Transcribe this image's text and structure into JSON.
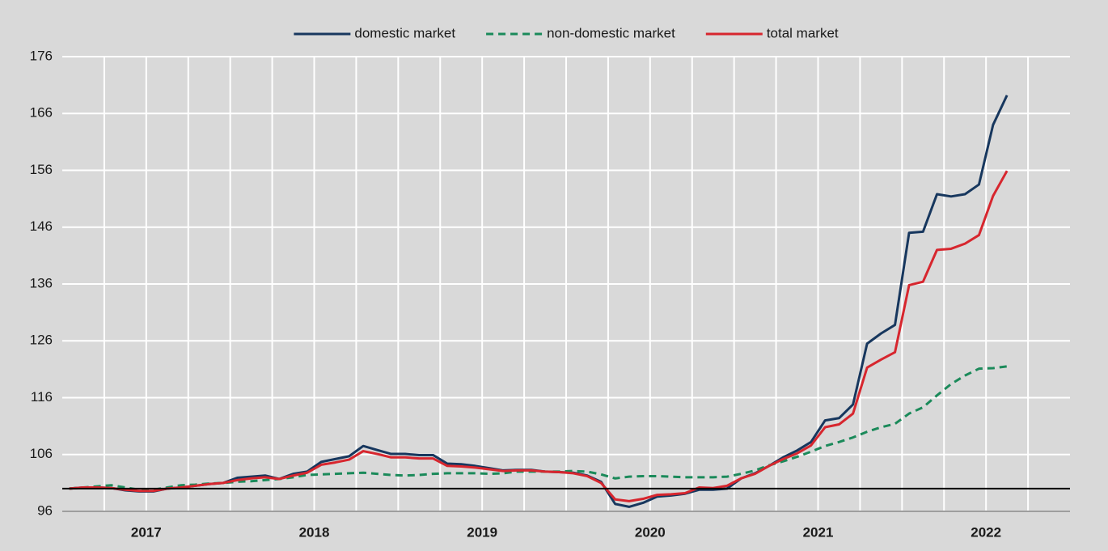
{
  "chart_data": {
    "type": "line",
    "x": [
      2017.042,
      2017.125,
      2017.208,
      2017.292,
      2017.375,
      2017.458,
      2017.542,
      2017.625,
      2017.708,
      2017.792,
      2017.875,
      2017.958,
      2018.042,
      2018.125,
      2018.208,
      2018.292,
      2018.375,
      2018.458,
      2018.542,
      2018.625,
      2018.708,
      2018.792,
      2018.875,
      2018.958,
      2019.042,
      2019.125,
      2019.208,
      2019.292,
      2019.375,
      2019.458,
      2019.542,
      2019.625,
      2019.708,
      2019.792,
      2019.875,
      2019.958,
      2020.042,
      2020.125,
      2020.208,
      2020.292,
      2020.375,
      2020.458,
      2020.542,
      2020.625,
      2020.708,
      2020.792,
      2020.875,
      2020.958,
      2021.042,
      2021.125,
      2021.208,
      2021.292,
      2021.375,
      2021.458,
      2021.542,
      2021.625,
      2021.708,
      2021.792,
      2021.875,
      2021.958,
      2022.042,
      2022.125,
      2022.208,
      2022.292,
      2022.375,
      2022.458,
      2022.542,
      2022.625
    ],
    "series": [
      {
        "name": "domestic market",
        "color": "#17375e",
        "dash": "solid",
        "values": [
          100.0,
          100.2,
          100.2,
          100.1,
          99.7,
          99.5,
          99.5,
          100.0,
          100.2,
          100.5,
          100.8,
          101.0,
          101.9,
          102.1,
          102.3,
          101.7,
          102.6,
          103.0,
          104.7,
          105.2,
          105.7,
          107.5,
          106.8,
          106.1,
          106.1,
          105.9,
          105.9,
          104.4,
          104.3,
          104.0,
          103.6,
          103.2,
          103.3,
          103.3,
          103.0,
          102.9,
          102.8,
          102.3,
          101.2,
          97.3,
          96.8,
          97.5,
          98.6,
          98.8,
          99.1,
          99.8,
          99.8,
          100.0,
          101.8,
          102.7,
          104.0,
          105.5,
          106.7,
          108.2,
          112.0,
          112.4,
          114.8,
          125.5,
          127.3,
          128.8,
          145.0,
          145.2,
          151.8,
          151.4,
          151.8,
          153.5,
          164.0,
          169.2
        ]
      },
      {
        "name": "non-domestic market",
        "color": "#1b8a5a",
        "dash": "dashed",
        "values": [
          100.0,
          100.2,
          100.4,
          100.6,
          100.2,
          99.8,
          99.8,
          100.2,
          100.6,
          100.7,
          100.9,
          101.0,
          101.2,
          101.3,
          101.5,
          101.7,
          102.0,
          102.4,
          102.5,
          102.6,
          102.7,
          102.8,
          102.6,
          102.4,
          102.3,
          102.4,
          102.6,
          102.7,
          102.7,
          102.7,
          102.6,
          102.7,
          103.0,
          103.0,
          103.0,
          103.0,
          103.1,
          103.0,
          102.5,
          101.8,
          102.1,
          102.2,
          102.2,
          102.1,
          102.0,
          102.0,
          102.0,
          102.1,
          102.6,
          103.2,
          104.1,
          104.8,
          105.6,
          106.5,
          107.5,
          108.2,
          109.0,
          110.0,
          110.8,
          111.4,
          113.2,
          114.3,
          116.4,
          118.4,
          119.9,
          121.1,
          121.2,
          121.5
        ]
      },
      {
        "name": "total market",
        "color": "#d7262e",
        "dash": "solid",
        "values": [
          100.0,
          100.2,
          100.2,
          100.1,
          99.8,
          99.6,
          99.6,
          100.0,
          100.2,
          100.5,
          100.8,
          101.0,
          101.5,
          101.8,
          102.0,
          101.7,
          102.3,
          102.8,
          104.2,
          104.6,
          105.1,
          106.6,
          106.1,
          105.5,
          105.5,
          105.3,
          105.3,
          104.0,
          103.9,
          103.7,
          103.4,
          103.1,
          103.2,
          103.2,
          103.0,
          102.9,
          102.7,
          102.2,
          101.0,
          98.1,
          97.8,
          98.2,
          98.9,
          99.0,
          99.2,
          100.2,
          100.1,
          100.5,
          101.8,
          102.6,
          104.0,
          105.2,
          106.2,
          107.6,
          110.8,
          111.3,
          113.2,
          121.3,
          122.7,
          124.0,
          135.8,
          136.4,
          142.0,
          142.2,
          143.1,
          144.6,
          151.5,
          155.9
        ]
      }
    ],
    "xlim": [
      2017,
      2023
    ],
    "xticks": [
      {
        "value": 2017.5,
        "label": "2017"
      },
      {
        "value": 2018.5,
        "label": "2018"
      },
      {
        "value": 2019.5,
        "label": "2019"
      },
      {
        "value": 2020.5,
        "label": "2020"
      },
      {
        "value": 2021.5,
        "label": "2021"
      },
      {
        "value": 2022.5,
        "label": "2022"
      }
    ],
    "x_gridlines": [
      2017.25,
      2017.5,
      2017.75,
      2018,
      2018.25,
      2018.5,
      2018.75,
      2019,
      2019.25,
      2019.5,
      2019.75,
      2020,
      2020.25,
      2020.5,
      2020.75,
      2021,
      2021.25,
      2021.5,
      2021.75,
      2022,
      2022.25,
      2022.5,
      2022.75
    ],
    "ylim": [
      96,
      176
    ],
    "yticks": [
      96,
      106,
      116,
      126,
      136,
      146,
      156,
      166,
      176
    ],
    "reference_line": 100,
    "grid": true,
    "legend": "top"
  }
}
